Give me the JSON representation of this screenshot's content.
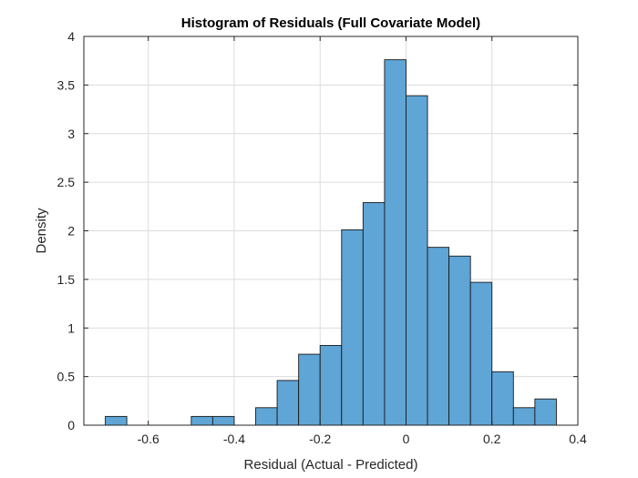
{
  "chart_data": {
    "type": "bar",
    "title": "Histogram of Residuals (Full Covariate Model)",
    "xlabel": "Residual (Actual - Predicted)",
    "ylabel": "Density",
    "xlim": [
      -0.75,
      0.4
    ],
    "ylim": [
      0,
      4
    ],
    "bin_width": 0.05,
    "bins": [
      {
        "x0": -0.7,
        "x1": -0.65,
        "value": 0.09
      },
      {
        "x0": -0.5,
        "x1": -0.45,
        "value": 0.09
      },
      {
        "x0": -0.45,
        "x1": -0.4,
        "value": 0.09
      },
      {
        "x0": -0.35,
        "x1": -0.3,
        "value": 0.18
      },
      {
        "x0": -0.3,
        "x1": -0.25,
        "value": 0.46
      },
      {
        "x0": -0.25,
        "x1": -0.2,
        "value": 0.73
      },
      {
        "x0": -0.2,
        "x1": -0.15,
        "value": 0.82
      },
      {
        "x0": -0.15,
        "x1": -0.1,
        "value": 2.01
      },
      {
        "x0": -0.1,
        "x1": -0.05,
        "value": 2.29
      },
      {
        "x0": -0.05,
        "x1": 0.0,
        "value": 3.76
      },
      {
        "x0": 0.0,
        "x1": 0.05,
        "value": 3.39
      },
      {
        "x0": 0.05,
        "x1": 0.1,
        "value": 1.83
      },
      {
        "x0": 0.1,
        "x1": 0.15,
        "value": 1.74
      },
      {
        "x0": 0.15,
        "x1": 0.2,
        "value": 1.47
      },
      {
        "x0": 0.2,
        "x1": 0.25,
        "value": 0.55
      },
      {
        "x0": 0.25,
        "x1": 0.3,
        "value": 0.18
      },
      {
        "x0": 0.3,
        "x1": 0.35,
        "value": 0.27
      }
    ],
    "x_ticks": [
      -0.6,
      -0.4,
      -0.2,
      0,
      0.2,
      0.4
    ],
    "x_tick_labels": [
      "-0.6",
      "-0.4",
      "-0.2",
      "0",
      "0.2",
      "0.4"
    ],
    "y_ticks": [
      0,
      0.5,
      1,
      1.5,
      2,
      2.5,
      3,
      3.5,
      4
    ],
    "y_tick_labels": [
      "0",
      "0.5",
      "1",
      "1.5",
      "2",
      "2.5",
      "3",
      "3.5",
      "4"
    ],
    "grid": true,
    "bar_color": "#5fa5d6",
    "bar_edge_color": "#1a1a1a"
  }
}
